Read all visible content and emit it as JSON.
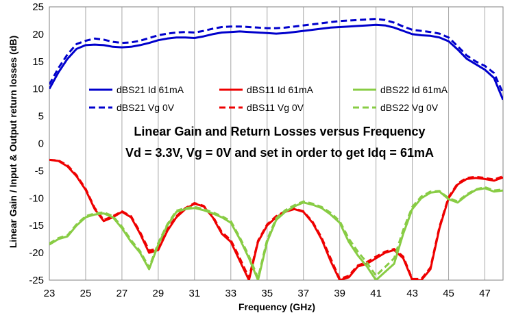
{
  "chart_data": {
    "type": "line",
    "title": "",
    "xlabel": "Frequency (GHz)",
    "ylabel": "Linear Gain / Input & Output return losses (dB)",
    "xlim": [
      23,
      48
    ],
    "ylim": [
      -25,
      25
    ],
    "x_ticks": [
      23,
      25,
      27,
      29,
      31,
      33,
      35,
      37,
      39,
      41,
      43,
      45,
      47
    ],
    "y_ticks": [
      25,
      20,
      15,
      10,
      5,
      0,
      -5,
      -10,
      -15,
      -20,
      -25
    ],
    "grid": "vertical",
    "legend_position": "upper-middle",
    "annotations": [
      "Linear Gain and Return Losses versus Frequency",
      "Vd = 3.3V, Vg = 0V and set in order to get Idq = 61mA"
    ],
    "series": [
      {
        "name": "dBS21 Id 61mA",
        "color": "#0000cc",
        "style": "solid",
        "x": [
          23,
          23.5,
          24,
          24.5,
          25,
          25.5,
          26,
          26.5,
          27,
          27.5,
          28,
          28.5,
          29,
          29.5,
          30,
          30.5,
          31,
          31.5,
          32,
          32.5,
          33,
          33.5,
          34,
          34.5,
          35,
          35.5,
          36,
          36.5,
          37,
          37.5,
          38,
          38.5,
          39,
          39.5,
          40,
          40.5,
          41,
          41.5,
          42,
          42.5,
          43,
          43.5,
          44,
          44.5,
          45,
          45.5,
          46,
          46.5,
          47,
          47.5,
          48
        ],
        "y": [
          10,
          13,
          15.5,
          17.3,
          18,
          18.1,
          18,
          17.7,
          17.6,
          17.7,
          18,
          18.4,
          18.9,
          19.2,
          19.4,
          19.4,
          19.3,
          19.6,
          20,
          20.3,
          20.4,
          20.5,
          20.4,
          20.3,
          20.2,
          20.1,
          20.2,
          20.4,
          20.6,
          20.8,
          21.0,
          21.2,
          21.3,
          21.4,
          21.5,
          21.6,
          21.7,
          21.6,
          21.2,
          20.6,
          20.0,
          19.8,
          19.7,
          19.4,
          18.7,
          17.2,
          15.5,
          14.5,
          13.5,
          12,
          8
        ]
      },
      {
        "name": "dBS21 Vg 0V",
        "color": "#0000cc",
        "style": "dashed",
        "x": [
          23,
          23.5,
          24,
          24.5,
          25,
          25.5,
          26,
          26.5,
          27,
          27.5,
          28,
          28.5,
          29,
          29.5,
          30,
          30.5,
          31,
          31.5,
          32,
          32.5,
          33,
          33.5,
          34,
          34.5,
          35,
          35.5,
          36,
          36.5,
          37,
          37.5,
          38,
          38.5,
          39,
          39.5,
          40,
          40.5,
          41,
          41.5,
          42,
          42.5,
          43,
          43.5,
          44,
          44.5,
          45,
          45.5,
          46,
          46.5,
          47,
          47.5,
          48
        ],
        "y": [
          10.8,
          13.8,
          16.3,
          18.2,
          18.8,
          19.2,
          19.0,
          18.6,
          18.4,
          18.5,
          18.8,
          19.3,
          19.8,
          20.1,
          20.3,
          20.4,
          20.3,
          20.6,
          21.0,
          21.3,
          21.4,
          21.4,
          21.3,
          21.2,
          21.1,
          21.1,
          21.2,
          21.4,
          21.6,
          21.8,
          22.0,
          22.2,
          22.4,
          22.5,
          22.6,
          22.7,
          22.8,
          22.6,
          22.1,
          21.4,
          20.8,
          20.6,
          20.4,
          20.1,
          19.4,
          17.8,
          16.1,
          15.0,
          14.2,
          12.9,
          9.2
        ]
      },
      {
        "name": "dBS11 Id 61mA",
        "color": "#ee0000",
        "style": "solid",
        "x": [
          23,
          23.5,
          24,
          24.5,
          25,
          25.5,
          26,
          26.5,
          27,
          27.5,
          28,
          28.5,
          29,
          29.5,
          30,
          30.5,
          31,
          31.5,
          32,
          32.5,
          33,
          33.5,
          34,
          34.5,
          35,
          35.5,
          36,
          36.5,
          37,
          37.5,
          38,
          38.5,
          39,
          39.5,
          40,
          40.5,
          41,
          41.5,
          42,
          42.5,
          43,
          43.5,
          44,
          44.5,
          45,
          45.5,
          46,
          46.5,
          47,
          47.5,
          48
        ],
        "y": [
          -3,
          -3.2,
          -4.2,
          -6,
          -8.5,
          -12,
          -14.2,
          -13.5,
          -12.5,
          -13.5,
          -16.5,
          -20,
          -19.5,
          -16,
          -13.5,
          -12,
          -11,
          -11.5,
          -13.5,
          -16.5,
          -18,
          -21.5,
          -25,
          -18,
          -15,
          -13.5,
          -12.5,
          -12,
          -12.5,
          -14.5,
          -17.5,
          -21.5,
          -25,
          -24.5,
          -22.5,
          -22,
          -21,
          -20,
          -19.5,
          -21,
          -25,
          -25,
          -23,
          -15.5,
          -10,
          -7.5,
          -6.5,
          -6.3,
          -6.5,
          -6.8,
          -6.2
        ]
      },
      {
        "name": "dBS11 Vg 0V",
        "color": "#ee0000",
        "style": "dashed",
        "x": [
          23,
          23.5,
          24,
          24.5,
          25,
          25.5,
          26,
          26.5,
          27,
          27.5,
          28,
          28.5,
          29,
          29.5,
          30,
          30.5,
          31,
          31.5,
          32,
          32.5,
          33,
          33.5,
          34,
          34.5,
          35,
          35.5,
          36,
          36.5,
          37,
          37.5,
          38,
          38.5,
          39,
          39.5,
          40,
          40.5,
          41,
          41.5,
          42,
          42.5,
          43,
          43.5,
          44,
          44.5,
          45,
          45.5,
          46,
          46.5,
          47,
          47.5,
          48
        ],
        "y": [
          -3,
          -3.1,
          -4.0,
          -5.8,
          -8.3,
          -11.8,
          -14.0,
          -13.3,
          -12.4,
          -13.3,
          -16.2,
          -19.6,
          -19.2,
          -15.7,
          -13.3,
          -11.8,
          -10.9,
          -11.4,
          -13.3,
          -16.2,
          -17.7,
          -21.0,
          -24.6,
          -17.8,
          -14.8,
          -13.3,
          -12.4,
          -11.9,
          -12.4,
          -14.3,
          -17.2,
          -21.0,
          -24.8,
          -24.2,
          -22.3,
          -21.7,
          -20.7,
          -19.8,
          -19.3,
          -20.7,
          -24.8,
          -24.8,
          -22.7,
          -15.2,
          -9.8,
          -7.3,
          -6.3,
          -6.1,
          -6.3,
          -6.6,
          -6.0
        ]
      },
      {
        "name": "dBS22 Id 61mA",
        "color": "#88cc44",
        "style": "solid",
        "x": [
          23,
          23.5,
          24,
          24.5,
          25,
          25.5,
          26,
          26.5,
          27,
          27.5,
          28,
          28.5,
          29,
          29.5,
          30,
          30.5,
          31,
          31.5,
          32,
          32.5,
          33,
          33.5,
          34,
          34.5,
          35,
          35.5,
          36,
          36.5,
          37,
          37.5,
          38,
          38.5,
          39,
          39.5,
          40,
          40.5,
          41,
          41.5,
          42,
          42.5,
          43,
          43.5,
          44,
          44.5,
          45,
          45.5,
          46,
          46.5,
          47,
          47.5,
          48
        ],
        "y": [
          -18.5,
          -17.5,
          -17,
          -15,
          -13.5,
          -13,
          -12.8,
          -13.5,
          -15.5,
          -18,
          -20,
          -23,
          -18.5,
          -15,
          -12.5,
          -12,
          -11.8,
          -12.2,
          -12.8,
          -13.5,
          -14.5,
          -17.5,
          -21,
          -25,
          -18,
          -14,
          -12.5,
          -11.5,
          -10.8,
          -11.2,
          -11.8,
          -13,
          -14.5,
          -18,
          -20.5,
          -22.5,
          -25,
          -23.5,
          -22,
          -16.5,
          -12,
          -10,
          -9,
          -8.8,
          -10.2,
          -10.8,
          -9.5,
          -8.5,
          -8.2,
          -8.8,
          -8.6
        ]
      },
      {
        "name": "dBS22 Vg 0V",
        "color": "#88cc44",
        "style": "dashed",
        "x": [
          23,
          23.5,
          24,
          24.5,
          25,
          25.5,
          26,
          26.5,
          27,
          27.5,
          28,
          28.5,
          29,
          29.5,
          30,
          30.5,
          31,
          31.5,
          32,
          32.5,
          33,
          33.5,
          34,
          34.5,
          35,
          35.5,
          36,
          36.5,
          37,
          37.5,
          38,
          38.5,
          39,
          39.5,
          40,
          40.5,
          41,
          41.5,
          42,
          42.5,
          43,
          43.5,
          44,
          44.5,
          45,
          45.5,
          46,
          46.5,
          47,
          47.5,
          48
        ],
        "y": [
          -18.3,
          -17.3,
          -16.8,
          -14.8,
          -13.3,
          -12.8,
          -12.6,
          -13.3,
          -15.2,
          -17.7,
          -19.7,
          -22.7,
          -18.2,
          -14.8,
          -12.3,
          -11.8,
          -11.6,
          -12.0,
          -12.6,
          -13.3,
          -14.2,
          -17.2,
          -20.6,
          -24.6,
          -17.6,
          -13.7,
          -12.2,
          -11.3,
          -10.6,
          -11.0,
          -11.6,
          -12.7,
          -14.2,
          -17.4,
          -19.8,
          -21.8,
          -24.2,
          -22.6,
          -21.0,
          -15.8,
          -11.6,
          -9.7,
          -8.8,
          -8.7,
          -10.0,
          -10.6,
          -9.3,
          -8.4,
          -8.0,
          -8.6,
          -8.4
        ]
      }
    ]
  }
}
